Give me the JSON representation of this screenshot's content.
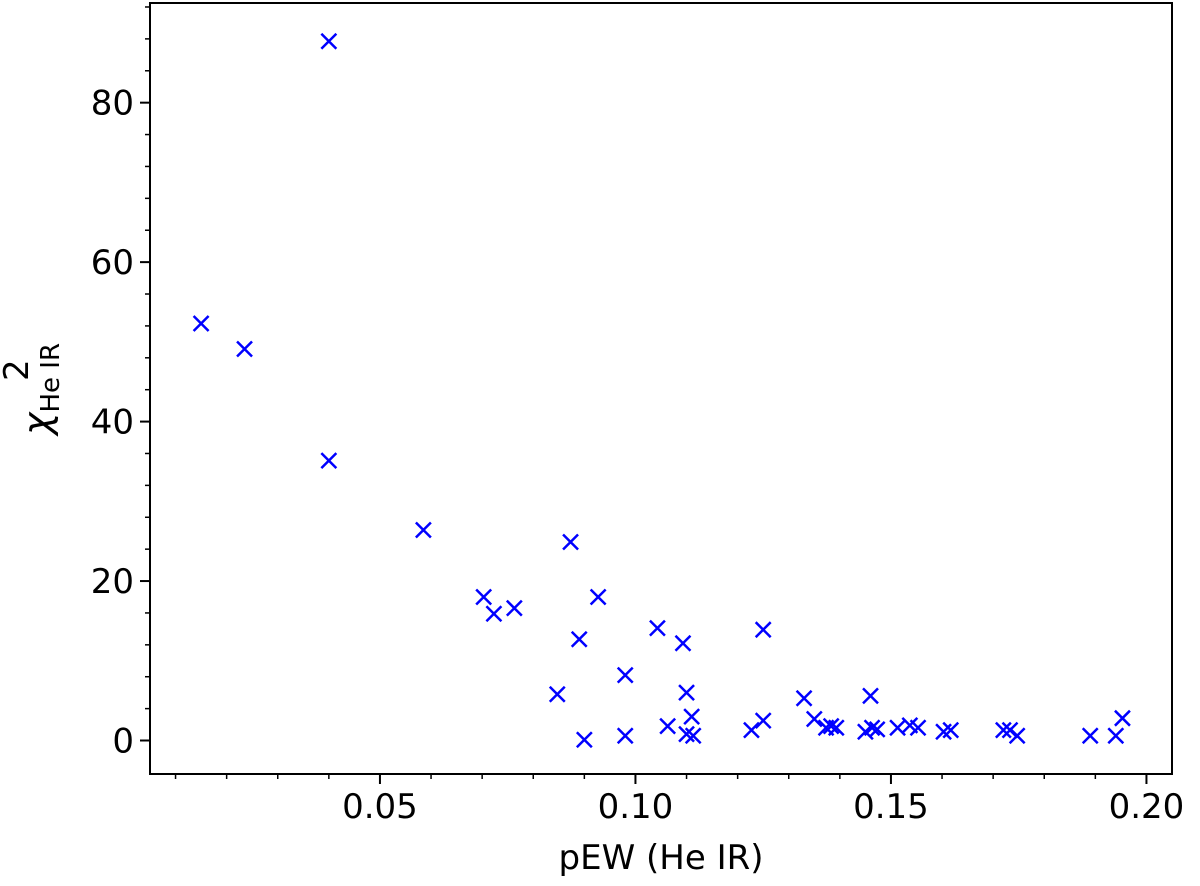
{
  "chart_data": {
    "type": "scatter",
    "title": "",
    "xlabel": "pEW (He IR)",
    "ylabel_main": "χ",
    "ylabel_sup": "2",
    "ylabel_sub": "He IR",
    "xlim": [
      0.005,
      0.205
    ],
    "ylim": [
      -4.2,
      92.5
    ],
    "xticks": [
      0.05,
      0.1,
      0.15,
      0.2
    ],
    "xtick_labels": [
      "0.05",
      "0.10",
      "0.15",
      "0.20"
    ],
    "yticks": [
      0,
      20,
      40,
      60,
      80
    ],
    "ytick_labels": [
      "0",
      "20",
      "40",
      "60",
      "80"
    ],
    "x_minor_step": 0.01,
    "y_minor_step": 4,
    "grid": false,
    "marker": "x",
    "marker_color": "#0000ff",
    "series": [
      {
        "points": [
          [
            0.015,
            52.3
          ],
          [
            0.0235,
            49.1
          ],
          [
            0.04,
            87.7
          ],
          [
            0.04,
            35.1
          ],
          [
            0.0585,
            26.4
          ],
          [
            0.0703,
            18.0
          ],
          [
            0.0723,
            15.9
          ],
          [
            0.0763,
            16.6
          ],
          [
            0.0847,
            5.8
          ],
          [
            0.0873,
            24.9
          ],
          [
            0.089,
            12.7
          ],
          [
            0.09,
            0.1
          ],
          [
            0.0927,
            18.0
          ],
          [
            0.098,
            8.2
          ],
          [
            0.098,
            0.6
          ],
          [
            0.1043,
            14.1
          ],
          [
            0.1063,
            1.8
          ],
          [
            0.1093,
            12.2
          ],
          [
            0.11,
            6.0
          ],
          [
            0.11,
            0.8
          ],
          [
            0.111,
            3.0
          ],
          [
            0.1113,
            0.6
          ],
          [
            0.1227,
            1.3
          ],
          [
            0.125,
            13.9
          ],
          [
            0.125,
            2.5
          ],
          [
            0.133,
            5.3
          ],
          [
            0.135,
            2.7
          ],
          [
            0.1373,
            1.6
          ],
          [
            0.1383,
            1.8
          ],
          [
            0.1393,
            1.6
          ],
          [
            0.145,
            1.1
          ],
          [
            0.146,
            5.6
          ],
          [
            0.1463,
            1.6
          ],
          [
            0.1473,
            1.4
          ],
          [
            0.1513,
            1.6
          ],
          [
            0.1537,
            1.9
          ],
          [
            0.1553,
            1.6
          ],
          [
            0.1603,
            1.1
          ],
          [
            0.1617,
            1.3
          ],
          [
            0.172,
            1.3
          ],
          [
            0.1733,
            1.3
          ],
          [
            0.1747,
            0.6
          ],
          [
            0.189,
            0.6
          ],
          [
            0.194,
            0.6
          ],
          [
            0.1953,
            2.8
          ]
        ]
      }
    ]
  }
}
